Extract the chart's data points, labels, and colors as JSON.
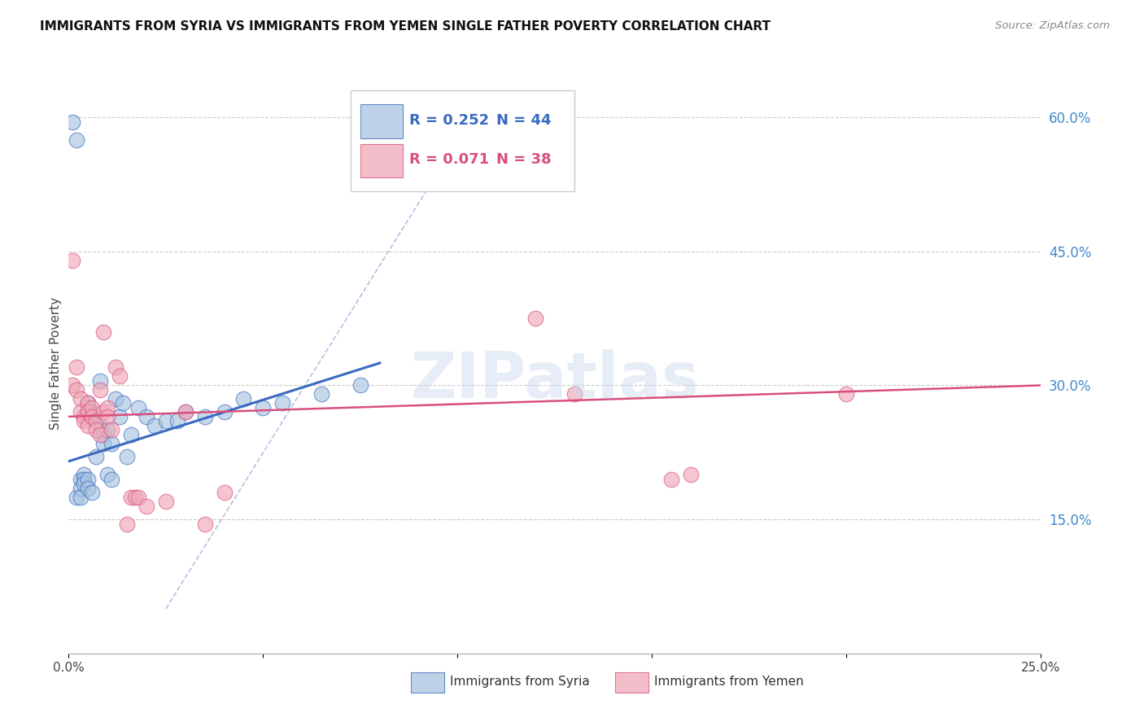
{
  "title": "IMMIGRANTS FROM SYRIA VS IMMIGRANTS FROM YEMEN SINGLE FATHER POVERTY CORRELATION CHART",
  "source": "Source: ZipAtlas.com",
  "ylabel": "Single Father Poverty",
  "legend_label1": "Immigrants from Syria",
  "legend_label2": "Immigrants from Yemen",
  "R1": 0.252,
  "N1": 44,
  "R2": 0.071,
  "N2": 38,
  "color1": "#a8c4e0",
  "color2": "#f0a8b8",
  "trendline1_color": "#3a6bbf",
  "trendline2_color": "#d94f7c",
  "dashed_line_color": "#b0c4e0",
  "xmin": 0.0,
  "xmax": 0.25,
  "ymin": 0.0,
  "ymax": 0.65,
  "xticks": [
    0.0,
    0.05,
    0.1,
    0.15,
    0.2,
    0.25
  ],
  "xticklabels": [
    "0.0%",
    "",
    "",
    "",
    "",
    "25.0%"
  ],
  "ytick_positions": [
    0.15,
    0.3,
    0.45,
    0.6
  ],
  "ytick_labels": [
    "15.0%",
    "30.0%",
    "45.0%",
    "60.0%"
  ],
  "syria_x": [
    0.001,
    0.002,
    0.002,
    0.003,
    0.003,
    0.003,
    0.004,
    0.004,
    0.004,
    0.005,
    0.005,
    0.005,
    0.005,
    0.006,
    0.006,
    0.006,
    0.007,
    0.007,
    0.008,
    0.008,
    0.009,
    0.009,
    0.01,
    0.01,
    0.011,
    0.011,
    0.012,
    0.013,
    0.014,
    0.015,
    0.016,
    0.018,
    0.02,
    0.022,
    0.025,
    0.028,
    0.03,
    0.035,
    0.04,
    0.045,
    0.05,
    0.055,
    0.065,
    0.075
  ],
  "syria_y": [
    0.595,
    0.575,
    0.175,
    0.195,
    0.185,
    0.175,
    0.2,
    0.195,
    0.19,
    0.28,
    0.275,
    0.195,
    0.185,
    0.27,
    0.265,
    0.18,
    0.26,
    0.22,
    0.305,
    0.255,
    0.245,
    0.235,
    0.25,
    0.2,
    0.235,
    0.195,
    0.285,
    0.265,
    0.28,
    0.22,
    0.245,
    0.275,
    0.265,
    0.255,
    0.26,
    0.26,
    0.27,
    0.265,
    0.27,
    0.285,
    0.275,
    0.28,
    0.29,
    0.3
  ],
  "yemen_x": [
    0.001,
    0.001,
    0.002,
    0.002,
    0.003,
    0.003,
    0.004,
    0.004,
    0.005,
    0.005,
    0.005,
    0.006,
    0.006,
    0.007,
    0.007,
    0.008,
    0.008,
    0.009,
    0.009,
    0.01,
    0.01,
    0.011,
    0.012,
    0.013,
    0.015,
    0.016,
    0.017,
    0.018,
    0.02,
    0.025,
    0.03,
    0.035,
    0.04,
    0.12,
    0.13,
    0.155,
    0.16,
    0.2
  ],
  "yemen_y": [
    0.44,
    0.3,
    0.32,
    0.295,
    0.285,
    0.27,
    0.265,
    0.26,
    0.255,
    0.28,
    0.27,
    0.275,
    0.265,
    0.26,
    0.25,
    0.245,
    0.295,
    0.27,
    0.36,
    0.275,
    0.265,
    0.25,
    0.32,
    0.31,
    0.145,
    0.175,
    0.175,
    0.175,
    0.165,
    0.17,
    0.27,
    0.145,
    0.18,
    0.375,
    0.29,
    0.195,
    0.2,
    0.29
  ]
}
